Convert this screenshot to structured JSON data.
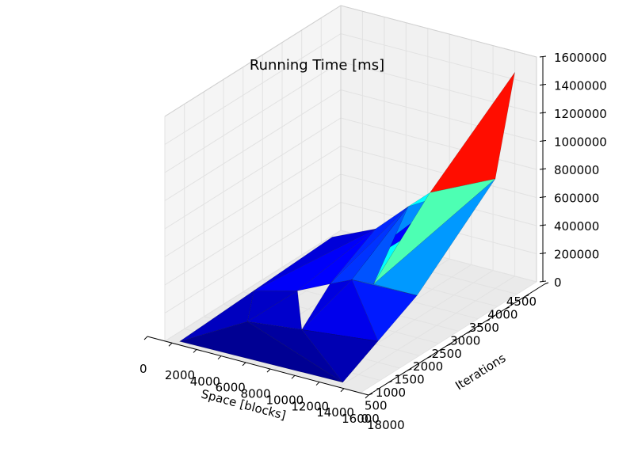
{
  "chart_data": {
    "type": "surface3d",
    "title": "Running Time [ms]",
    "xlabel": "Space [blocks]",
    "ylabel": "Iterations",
    "zlabel": "",
    "xlim": [
      0,
      18000
    ],
    "ylim": [
      0,
      4500
    ],
    "zlim": [
      0,
      1600000
    ],
    "xticks": [
      "0",
      "2000",
      "4000",
      "6000",
      "8000",
      "10000",
      "12000",
      "14000",
      "16000",
      "18000"
    ],
    "yticks": [
      "0",
      "500",
      "1000",
      "1500",
      "2000",
      "2500",
      "3000",
      "3500",
      "4000",
      "4500"
    ],
    "zticks": [
      "0",
      "200000",
      "400000",
      "600000",
      "800000",
      "1000000",
      "1200000",
      "1400000",
      "1600000"
    ],
    "colormap": "jet",
    "points": [
      [
        1000,
        100,
        1000
      ],
      [
        16000,
        100,
        15000
      ],
      [
        16000,
        1000,
        150000
      ],
      [
        16000,
        2000,
        300000
      ],
      [
        16000,
        4000,
        780000
      ],
      [
        1000,
        2000,
        30000
      ],
      [
        1000,
        4000,
        60000
      ],
      [
        5000,
        2000,
        110000
      ],
      [
        5000,
        4000,
        200000
      ],
      [
        8000,
        2000,
        220000
      ],
      [
        8000,
        4000,
        420000
      ],
      [
        10000,
        2000,
        290000
      ],
      [
        10000,
        4000,
        560000
      ],
      [
        12000,
        2000,
        300000
      ],
      [
        12000,
        4000,
        600000
      ],
      [
        13000,
        4000,
        550000
      ],
      [
        16000,
        4500,
        1450000
      ],
      [
        9000,
        1000,
        90000
      ],
      [
        12000,
        1000,
        110000
      ],
      [
        4000,
        1000,
        45000
      ]
    ],
    "triangles": [
      {
        "v": [
          1,
          2,
          17
        ],
        "value": 80000
      },
      {
        "v": [
          2,
          3,
          11
        ],
        "value": 240000
      },
      {
        "v": [
          3,
          4,
          13
        ],
        "value": 440000
      },
      {
        "v": [
          4,
          13,
          12
        ],
        "value": 720000
      },
      {
        "v": [
          4,
          16,
          12
        ],
        "value": 1380000
      },
      {
        "v": [
          12,
          13,
          10
        ],
        "value": 600000
      },
      {
        "v": [
          13,
          11,
          3
        ],
        "value": 380000
      },
      {
        "v": [
          10,
          11,
          13
        ],
        "value": 330000
      },
      {
        "v": [
          10,
          14,
          11
        ],
        "value": 420000
      },
      {
        "v": [
          9,
          10,
          11
        ],
        "value": 280000
      },
      {
        "v": [
          9,
          8,
          10
        ],
        "value": 260000
      },
      {
        "v": [
          8,
          7,
          9
        ],
        "value": 200000
      },
      {
        "v": [
          7,
          8,
          5
        ],
        "value": 190000
      },
      {
        "v": [
          6,
          5,
          8
        ],
        "value": 140000
      },
      {
        "v": [
          5,
          19,
          7
        ],
        "value": 110000
      },
      {
        "v": [
          0,
          19,
          5
        ],
        "value": 100000
      },
      {
        "v": [
          19,
          17,
          7
        ],
        "value": 120000
      },
      {
        "v": [
          17,
          11,
          9
        ],
        "value": 150000
      },
      {
        "v": [
          17,
          2,
          11
        ],
        "value": 170000
      },
      {
        "v": [
          0,
          1,
          19
        ],
        "value": 30000
      },
      {
        "v": [
          19,
          1,
          17
        ],
        "value": 50000
      },
      {
        "v": [
          17,
          18,
          2
        ],
        "value": 100000
      },
      {
        "v": [
          9,
          15,
          14
        ],
        "value": 200000
      }
    ]
  }
}
